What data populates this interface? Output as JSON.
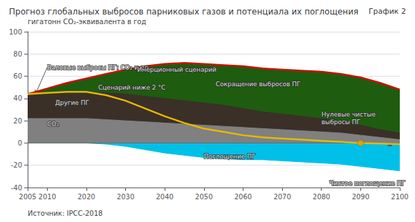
{
  "chart_data": {
    "type": "area",
    "title": "Прогноз глобальных выбросов парниковых газов и потенциала их поглощения",
    "subtitle": "График 2",
    "ylabel": "гигатонн CO₂-эквивалента в год",
    "source": "Источник: IPCC-2018",
    "x": [
      2005,
      2010,
      2015,
      2020,
      2025,
      2030,
      2035,
      2040,
      2045,
      2050,
      2055,
      2060,
      2065,
      2070,
      2075,
      2080,
      2085,
      2090,
      2095,
      2100
    ],
    "series": [
      {
        "type": "area",
        "color": "#808080",
        "values": [
          22,
          22,
          22,
          22,
          21,
          20,
          19,
          18,
          17,
          16,
          15,
          14,
          13,
          12,
          11,
          10,
          9,
          7,
          5,
          3
        ]
      },
      {
        "type": "area",
        "color": "#3a3028",
        "values": [
          44,
          45,
          46,
          46,
          45,
          44,
          42,
          40,
          38,
          36,
          34,
          31,
          28,
          26,
          24,
          22,
          20,
          16,
          12,
          9
        ]
      },
      {
        "type": "area",
        "color": "#1e5c0f",
        "values": [
          44,
          49,
          54,
          58,
          62,
          66,
          69,
          71,
          72,
          71,
          70,
          69,
          67,
          66,
          65,
          64,
          62,
          59,
          54,
          48
        ]
      },
      {
        "type": "line",
        "color": "#cc1100",
        "values": [
          44,
          49,
          54,
          58,
          62,
          66,
          69,
          71,
          72,
          71,
          70,
          69,
          67,
          66,
          65,
          64,
          62,
          59,
          54,
          48
        ]
      },
      {
        "type": "line",
        "color": "#e8b800",
        "values": [
          44,
          45,
          46,
          46,
          43,
          38,
          31,
          24,
          18,
          13,
          10,
          7,
          5,
          4,
          3,
          2,
          1,
          0,
          -0.5,
          -1
        ]
      },
      {
        "type": "area",
        "color": "#00c0e8",
        "values": [
          0,
          0,
          0,
          0,
          -1,
          -3,
          -6,
          -9,
          -11,
          -13,
          -14,
          -15,
          -15,
          -16,
          -17,
          -18,
          -19,
          -21,
          -23,
          -25
        ]
      },
      {
        "type": "scatter",
        "color": "#e8a000",
        "marker": "circle",
        "x": [
          2090
        ],
        "values": [
          0
        ]
      }
    ],
    "annotations": [
      {
        "text": "Валовые выбросы ПГ: CO₂ и др.",
        "x": 2010,
        "y": 68,
        "xy": [
          2007,
          44
        ]
      },
      {
        "text": "Другие ПГ",
        "x": 2012,
        "y": 36
      },
      {
        "text": "CO₂",
        "x": 2010,
        "y": 17,
        "xy": [
          2008,
          14
        ]
      },
      {
        "text": "Инерционный сценарий",
        "x": 2033,
        "y": 66
      },
      {
        "text": "Сценарий ниже 2 °C",
        "x": 2023,
        "y": 50
      },
      {
        "text": "Сокращение выбросов ПГ",
        "x": 2053,
        "y": 53
      },
      {
        "text": "Нулевые чистые\nвыбросы ПГ",
        "x": 2080,
        "y": 22,
        "xy": [
          2090,
          2
        ]
      },
      {
        "text": "Поглощение ПГ",
        "x": 2050,
        "y": -12
      },
      {
        "text": "Чистое поглощение ПГ",
        "x": 2082,
        "y": -36
      },
      {
        "x": 2095,
        "y": 5,
        "xy": [
          2098,
          -3
        ]
      }
    ],
    "xlim": [
      2005,
      2100
    ],
    "xticks": [
      2005,
      2010,
      2020,
      2030,
      2040,
      2050,
      2060,
      2070,
      2080,
      2090,
      2100
    ],
    "ylim": [
      -40,
      100
    ],
    "yticks": [
      -40,
      -20,
      0,
      20,
      40,
      60,
      80,
      100
    ],
    "grid": true
  }
}
